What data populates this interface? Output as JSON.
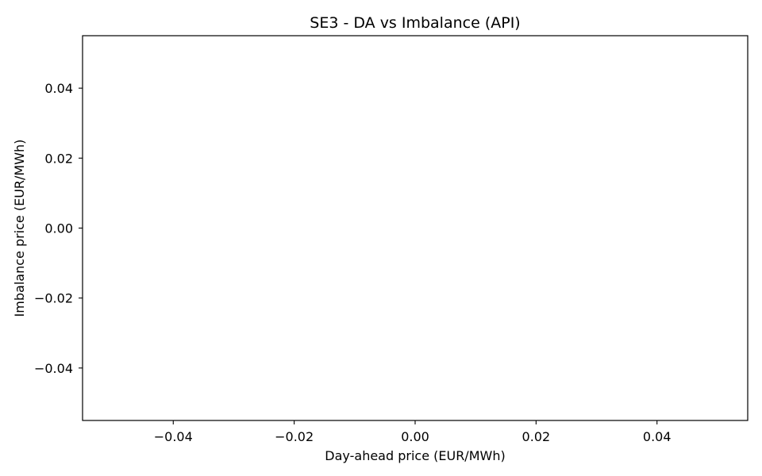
{
  "chart_data": {
    "type": "scatter",
    "title": "SE3 - DA vs Imbalance (API)",
    "xlabel": "Day-ahead price (EUR/MWh)",
    "ylabel": "Imbalance price (EUR/MWh)",
    "xlim": [
      -0.055,
      0.055
    ],
    "ylim": [
      -0.055,
      0.055
    ],
    "xticks": [
      -0.04,
      -0.02,
      0.0,
      0.02,
      0.04
    ],
    "yticks": [
      -0.04,
      -0.02,
      0.0,
      0.02,
      0.04
    ],
    "xtick_labels": [
      "−0.04",
      "−0.02",
      "0.00",
      "0.02",
      "0.04"
    ],
    "ytick_labels": [
      "−0.04",
      "−0.02",
      "0.00",
      "0.02",
      "0.04"
    ],
    "grid": false,
    "series": [
      {
        "x": [],
        "y": []
      }
    ]
  }
}
